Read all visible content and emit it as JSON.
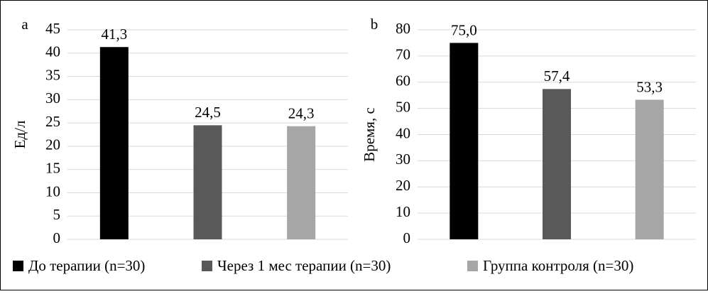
{
  "chart_data": [
    {
      "type": "bar",
      "panel_label": "a",
      "y_label": "Ед/л",
      "categories": [
        null,
        null,
        null
      ],
      "values": [
        41.3,
        24.5,
        24.3
      ],
      "value_labels": [
        "41,3",
        "24,5",
        "24,3"
      ],
      "ylim": [
        0,
        45
      ],
      "yticks": [
        0,
        5,
        10,
        15,
        20,
        25,
        30,
        35,
        40,
        45
      ],
      "grid": true
    },
    {
      "type": "bar",
      "panel_label": "b",
      "y_label": "Время, с",
      "categories": [
        null,
        null,
        null
      ],
      "values": [
        75.0,
        57.4,
        53.3
      ],
      "value_labels": [
        "75,0",
        "57,4",
        "53,3"
      ],
      "ylim": [
        0,
        80
      ],
      "yticks": [
        0,
        10,
        20,
        30,
        40,
        50,
        60,
        70,
        80
      ],
      "grid": true
    }
  ],
  "legend": [
    {
      "name": "До терапии (n=30)",
      "color": "#000000"
    },
    {
      "name": "Через 1 мес терапии (n=30)",
      "color": "#595959"
    },
    {
      "name": "Группа контроля (n=30)",
      "color": "#a6a6a6"
    }
  ]
}
